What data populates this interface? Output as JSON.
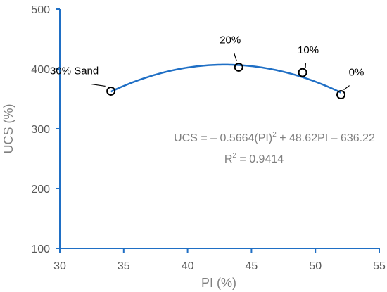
{
  "chart_data": {
    "type": "scatter",
    "title": "",
    "xlabel": "PI (%)",
    "ylabel": "UCS (%)",
    "xlim": [
      30,
      55
    ],
    "ylim": [
      100,
      500
    ],
    "xticks": [
      "30",
      "35",
      "40",
      "45",
      "50",
      "55"
    ],
    "yticks": [
      "100",
      "200",
      "300",
      "400",
      "500"
    ],
    "grid": false,
    "legend": "none",
    "series": [
      {
        "points": [
          {
            "x": 34,
            "y": 363,
            "label": "30% Sand"
          },
          {
            "x": 44,
            "y": 403,
            "label": "20%"
          },
          {
            "x": 49,
            "y": 394,
            "label": "10%"
          },
          {
            "x": 52,
            "y": 357,
            "label": "0%"
          }
        ]
      }
    ],
    "trendline": {
      "type": "polynomial",
      "coefficients": [
        -0.5664,
        48.62,
        -636.22
      ],
      "x_range": [
        34,
        52
      ],
      "equation": {
        "part1": "UCS = – 0.5664(PI)",
        "sup": "2",
        "part2": " + 48.62PI – 636.22"
      },
      "r2": {
        "part1": "R",
        "sup": "2",
        "part2": " = 0.9414"
      }
    },
    "colors": {
      "axis": "#1f6fc5",
      "trendline": "#1f6fc5",
      "marker": "#000000"
    }
  }
}
